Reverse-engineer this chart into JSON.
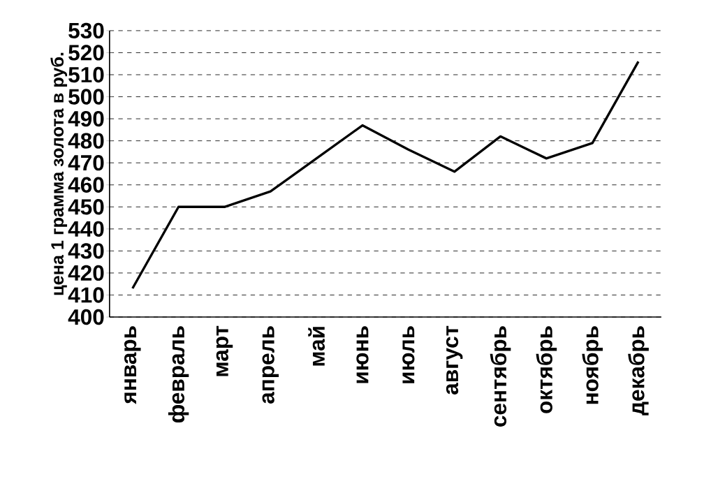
{
  "chart_data": {
    "type": "line",
    "ylabel": "цена 1 грамма золота в руб.",
    "categories": [
      "январь",
      "февраль",
      "март",
      "апрель",
      "май",
      "июнь",
      "июль",
      "август",
      "сентябрь",
      "октябрь",
      "ноябрь",
      "декабрь"
    ],
    "values": [
      413,
      450,
      450,
      457,
      472,
      487,
      476,
      466,
      482,
      472,
      479,
      516
    ],
    "color": "#000000",
    "ylim": [
      400,
      530
    ],
    "yticks": [
      400,
      410,
      420,
      430,
      440,
      450,
      460,
      470,
      480,
      490,
      500,
      510,
      520,
      530
    ],
    "grid": "y",
    "marker": "none",
    "line_style": "solid"
  }
}
